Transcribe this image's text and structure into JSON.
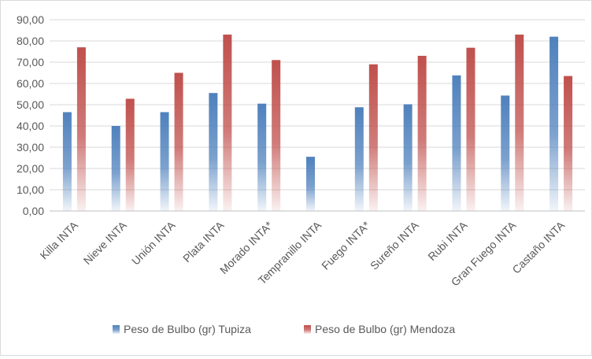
{
  "chart_data": {
    "type": "bar",
    "categories": [
      "Killa INTA",
      "Nieve INTA",
      "Unión INTA",
      "Plata INTA",
      "Morado INTA*",
      "Tempranillo INTA",
      "Fuego INTA*",
      "Sureño INTA",
      "Rubi INTA",
      "Gran Fuego INTA",
      "Castaño INTA"
    ],
    "series": [
      {
        "name": "Peso de Bulbo (gr) Tupiza",
        "color": "#4f81bd",
        "values": [
          46.5,
          40.0,
          46.5,
          55.5,
          50.5,
          25.5,
          48.8,
          50.2,
          63.8,
          54.3,
          82.0
        ]
      },
      {
        "name": "Peso de Bulbo (gr) Mendoza",
        "color": "#c0504d",
        "values": [
          77.0,
          52.8,
          65.0,
          83.0,
          71.0,
          null,
          69.0,
          73.0,
          76.8,
          83.0,
          63.5
        ]
      }
    ],
    "yticks": [
      "0,00",
      "10,00",
      "20,00",
      "30,00",
      "40,00",
      "50,00",
      "60,00",
      "70,00",
      "80,00",
      "90,00"
    ],
    "ylim": [
      0,
      90
    ],
    "title": "",
    "xlabel": "",
    "ylabel": "",
    "grid": true,
    "legend": "bottom"
  }
}
